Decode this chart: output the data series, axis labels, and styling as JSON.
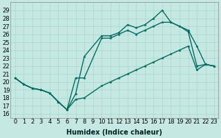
{
  "xlabel": "Humidex (Indice chaleur)",
  "ylabel": "",
  "bg_color": "#c6e8e2",
  "grid_color": "#a8d4cc",
  "line_color": "#006b60",
  "xlim": [
    -0.5,
    23.5
  ],
  "ylim": [
    15.5,
    30.0
  ],
  "yticks": [
    16,
    17,
    18,
    19,
    20,
    21,
    22,
    23,
    24,
    25,
    26,
    27,
    28,
    29
  ],
  "xticks": [
    0,
    1,
    2,
    3,
    4,
    5,
    6,
    7,
    8,
    9,
    10,
    11,
    12,
    13,
    14,
    15,
    16,
    17,
    18,
    19,
    20,
    21,
    22,
    23
  ],
  "line1_x": [
    0,
    1,
    2,
    3,
    4,
    5,
    6,
    7,
    8,
    10,
    11,
    12,
    13,
    14,
    15,
    16,
    17,
    18,
    19,
    20,
    21,
    22,
    23
  ],
  "line1_y": [
    20.5,
    19.7,
    19.2,
    19.0,
    18.6,
    17.5,
    16.5,
    18.5,
    23.2,
    25.8,
    25.8,
    26.2,
    27.2,
    26.8,
    27.2,
    28.0,
    29.0,
    27.5,
    27.0,
    26.5,
    24.5,
    22.2,
    22.0
  ],
  "line2_x": [
    0,
    1,
    2,
    3,
    4,
    5,
    6,
    7,
    8,
    10,
    11,
    12,
    13,
    14,
    15,
    16,
    17,
    18,
    19,
    20,
    21,
    22,
    23
  ],
  "line2_y": [
    20.5,
    19.7,
    19.2,
    19.0,
    18.6,
    17.5,
    16.5,
    20.5,
    20.5,
    25.5,
    25.5,
    26.0,
    26.5,
    26.0,
    26.5,
    27.0,
    27.5,
    27.5,
    27.0,
    26.3,
    22.0,
    22.2,
    22.0
  ],
  "line3_x": [
    0,
    1,
    2,
    3,
    4,
    5,
    6,
    7,
    8,
    10,
    11,
    12,
    13,
    14,
    15,
    16,
    17,
    18,
    19,
    20,
    21,
    22,
    23
  ],
  "line3_y": [
    20.5,
    19.7,
    19.2,
    19.0,
    18.6,
    17.5,
    16.5,
    17.8,
    18.0,
    19.5,
    20.0,
    20.5,
    21.0,
    21.5,
    22.0,
    22.5,
    23.0,
    23.5,
    24.0,
    24.5,
    21.5,
    22.2,
    22.0
  ],
  "marker_size": 2.5,
  "line_width": 1.0,
  "font_size_tick": 6,
  "font_size_label": 7
}
